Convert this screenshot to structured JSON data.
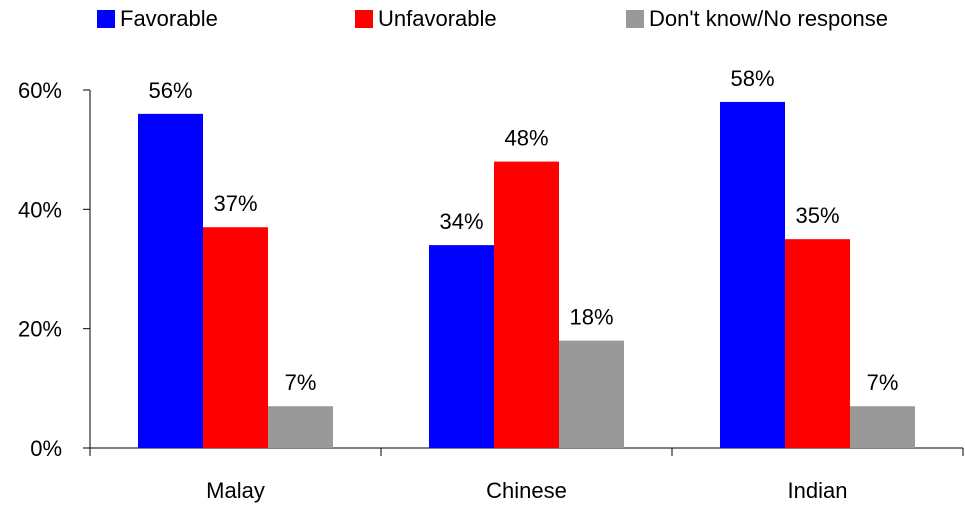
{
  "colors": {
    "favorable": "#0000ff",
    "unfavorable": "#ff0000",
    "dont_know": "#999999",
    "axis": "#000000"
  },
  "chart_data": {
    "type": "bar",
    "title": "",
    "xlabel": "",
    "ylabel": "",
    "categories": [
      "Malay",
      "Chinese",
      "Indian"
    ],
    "series": [
      {
        "name": "Favorable",
        "values": [
          56,
          34,
          58
        ],
        "labels": [
          "56%",
          "34%",
          "58%"
        ]
      },
      {
        "name": "Unfavorable",
        "values": [
          37,
          48,
          35
        ],
        "labels": [
          "37%",
          "48%",
          "35%"
        ]
      },
      {
        "name": "Don't know/No response",
        "values": [
          7,
          18,
          7
        ],
        "labels": [
          "7%",
          "18%",
          "7%"
        ]
      }
    ],
    "ylim": [
      0,
      60
    ],
    "yticks": [
      0,
      20,
      40,
      60
    ],
    "ytick_labels": [
      "0%",
      "20%",
      "40%",
      "60%"
    ],
    "grid": false,
    "legend_position": "top"
  }
}
